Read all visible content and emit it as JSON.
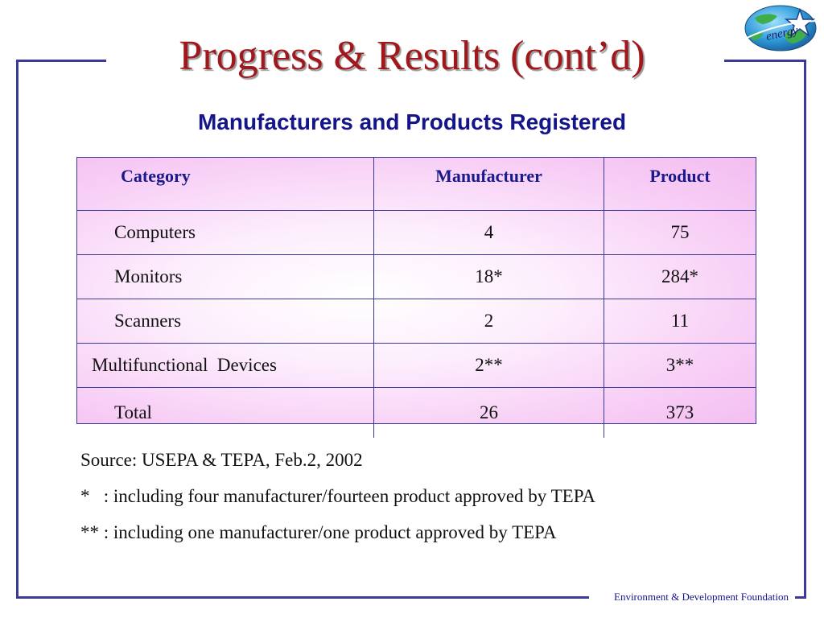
{
  "slide": {
    "title": "Progress & Results (cont’d)",
    "subtitle": "Manufacturers and Products Registered",
    "logo_text": "energy"
  },
  "table": {
    "headers": [
      "Category",
      "Manufacturer",
      "Product"
    ],
    "rows": [
      [
        "Computers",
        "4",
        "75"
      ],
      [
        "Monitors",
        "18*",
        "284*"
      ],
      [
        "Scanners",
        "2",
        "11"
      ],
      [
        "Multifunctional  Devices",
        "2**",
        "3**"
      ],
      [
        "Total",
        "26",
        "373"
      ]
    ]
  },
  "notes": {
    "source": "Source: USEPA & TEPA, Feb.2, 2002",
    "note1": "*   : including four manufacturer/fourteen product approved by TEPA",
    "note2": "** : including one manufacturer/one product approved by TEPA"
  },
  "footer": {
    "org": "Environment & Development Foundation"
  },
  "colors": {
    "title": "#a0171c",
    "subtitle": "#15158a",
    "frame": "#3a3a9a",
    "table_fill": "#f3bdf0"
  }
}
